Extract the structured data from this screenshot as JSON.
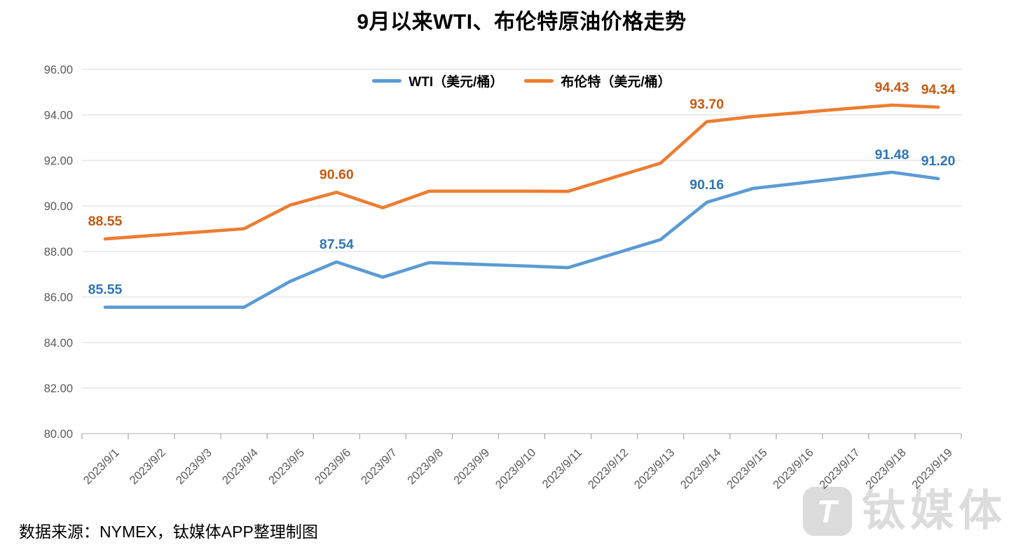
{
  "page": {
    "title": "9月以来WTI、布伦特原油价格走势",
    "source_note": "数据来源：NYMEX，钛媒体APP整理制图",
    "watermark_text": "钛媒体",
    "watermark_logo_glyph": "T"
  },
  "chart_data": {
    "type": "line",
    "title": "9月以来WTI、布伦特原油价格走势",
    "xlabel": "",
    "ylabel": "",
    "ylim": [
      80,
      96
    ],
    "ytick_step": 2,
    "ytick_labels": [
      "80.00",
      "82.00",
      "84.00",
      "86.00",
      "88.00",
      "90.00",
      "92.00",
      "94.00",
      "96.00"
    ],
    "grid": true,
    "legend_position": "top",
    "categories": [
      "2023/9/1",
      "2023/9/2",
      "2023/9/3",
      "2023/9/4",
      "2023/9/5",
      "2023/9/6",
      "2023/9/7",
      "2023/9/8",
      "2023/9/9",
      "2023/9/10",
      "2023/9/11",
      "2023/9/12",
      "2023/9/13",
      "2023/9/14",
      "2023/9/15",
      "2023/9/16",
      "2023/9/17",
      "2023/9/18",
      "2023/9/19"
    ],
    "series": [
      {
        "name": "WTI（美元/桶）",
        "color": "#5B9BD5",
        "label_color": "#2E75B6",
        "values": [
          85.55,
          85.55,
          85.55,
          85.55,
          86.69,
          87.54,
          86.87,
          87.51,
          87.44,
          87.37,
          87.29,
          87.9,
          88.52,
          90.16,
          90.77,
          91.0,
          91.24,
          91.48,
          91.2
        ],
        "point_labels": [
          {
            "index": 0,
            "text": "85.55"
          },
          {
            "index": 5,
            "text": "87.54"
          },
          {
            "index": 13,
            "text": "90.16"
          },
          {
            "index": 17,
            "text": "91.48"
          },
          {
            "index": 18,
            "text": "91.20"
          }
        ]
      },
      {
        "name": "布伦特（美元/桶）",
        "color": "#ED7D31",
        "label_color": "#C55A11",
        "values": [
          88.55,
          88.7,
          88.85,
          89.0,
          90.04,
          90.6,
          89.92,
          90.65,
          90.65,
          90.65,
          90.64,
          91.26,
          91.88,
          93.7,
          93.93,
          94.1,
          94.27,
          94.43,
          94.34
        ],
        "point_labels": [
          {
            "index": 0,
            "text": "88.55"
          },
          {
            "index": 5,
            "text": "90.60"
          },
          {
            "index": 13,
            "text": "93.70"
          },
          {
            "index": 17,
            "text": "94.43"
          },
          {
            "index": 18,
            "text": "94.34"
          }
        ]
      }
    ],
    "colors": {
      "axis_text": "#595959",
      "gridline": "#D9D9D9",
      "axis_line": "#BFBFBF",
      "tick_mark": "#A6A6A6"
    }
  }
}
